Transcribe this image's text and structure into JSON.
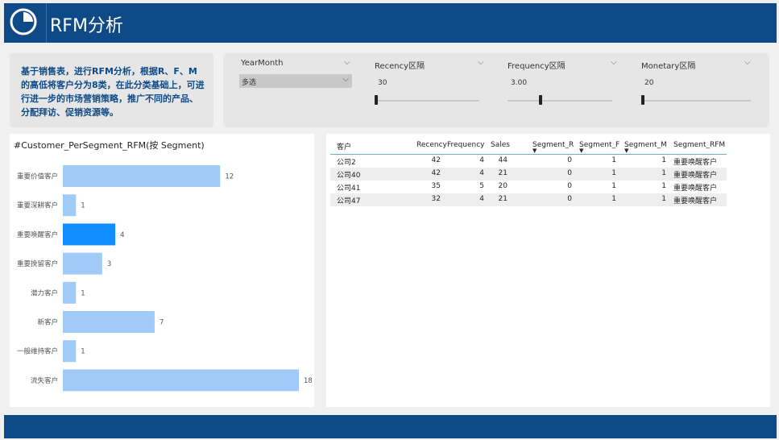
{
  "header": {
    "title": "RFM分析",
    "logo_icon": "pie-chart-icon"
  },
  "description": "基于销售表，进行RFM分析，根据R、F、M的高低将客户分为8类，在此分类基础上，可进行进一步的市场营销策略，推广不同的产品、分配拜访、促销资源等。",
  "slicers": [
    {
      "label": "YearMonth",
      "value": "多选",
      "type": "dropdown"
    },
    {
      "label": "Recency区隔",
      "value": "30",
      "type": "slider",
      "level": 0.0
    },
    {
      "label": "Frequency区隔",
      "value": "3.00",
      "type": "slider",
      "level": 0.3
    },
    {
      "label": "Monetary区隔",
      "value": "20",
      "type": "slider",
      "level": 0.0
    }
  ],
  "chart_data": {
    "type": "bar",
    "title": "#Customer_PerSegment_RFM(按 Segment)",
    "categories": [
      "重要价值客户",
      "重要深耕客户",
      "重要唤醒客户",
      "重要挽留客户",
      "潜力客户",
      "新客户",
      "一般维持客户",
      "流失客户"
    ],
    "values": [
      12,
      1,
      4,
      3,
      1,
      7,
      1,
      18
    ],
    "highlighted": "重要唤醒客户",
    "xlim": [
      0,
      18
    ],
    "colors": {
      "bar": "#a0cbf9",
      "highlight": "#118dff"
    }
  },
  "table": {
    "columns": [
      "客户",
      "Recency",
      "Frequency",
      "Sales",
      "Segment_R",
      "Segment_F",
      "Segment_M",
      "Segment_RFM"
    ],
    "rows": [
      [
        "公司2",
        "42",
        "4",
        "44",
        "0",
        "1",
        "1",
        "重要唤醒客户"
      ],
      [
        "公司40",
        "42",
        "4",
        "21",
        "0",
        "1",
        "1",
        "重要唤醒客户"
      ],
      [
        "公司41",
        "35",
        "5",
        "20",
        "0",
        "1",
        "1",
        "重要唤醒客户"
      ],
      [
        "公司47",
        "32",
        "4",
        "21",
        "0",
        "1",
        "1",
        "重要唤醒客户"
      ]
    ]
  },
  "colors": {
    "brand": "#0d4a87",
    "panel": "#e6e6e6"
  }
}
